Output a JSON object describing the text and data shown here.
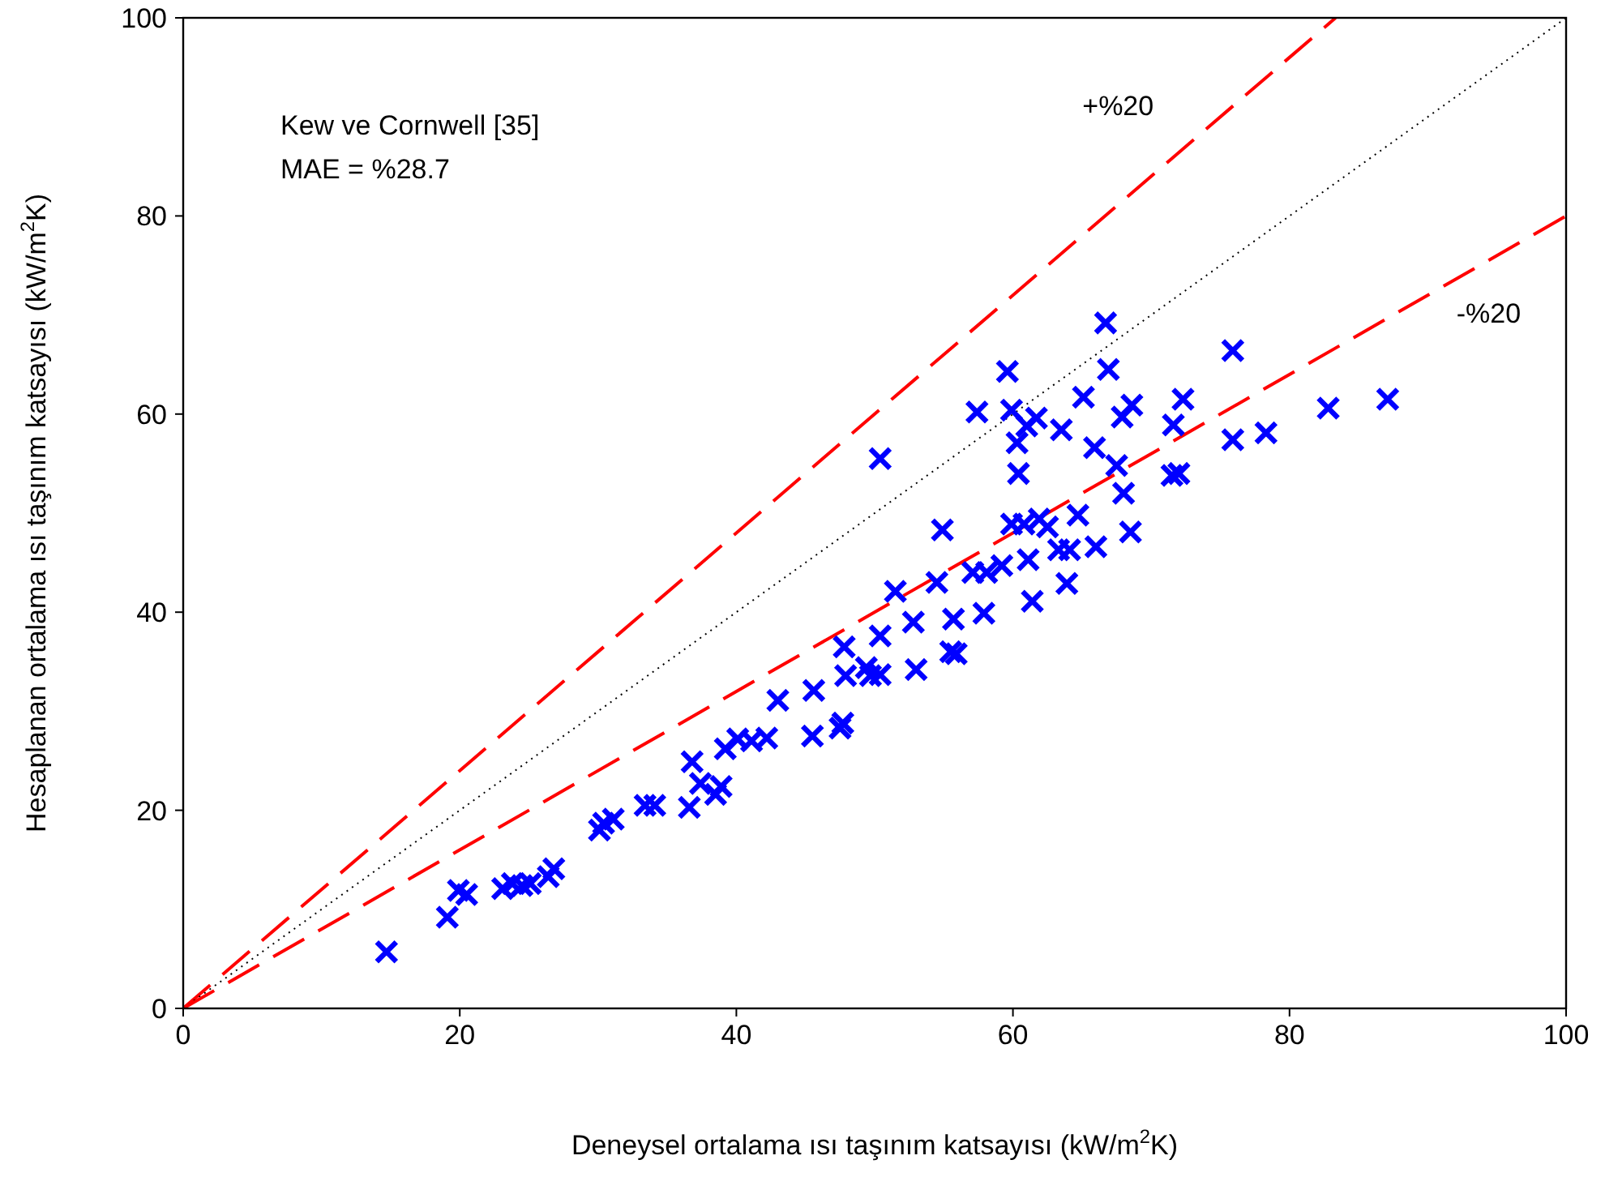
{
  "chart_data": {
    "type": "scatter",
    "xlabel": "Deneysel ortalama ısı taşınım katsayısı (kW/m$^{2}$K)",
    "ylabel": "Hesaplanan ortalama ısı taşınım katsayısı (kW/m$^{2}$K)",
    "xlim": [
      0,
      100
    ],
    "ylim": [
      0,
      100
    ],
    "xticks": [
      0,
      20,
      40,
      60,
      80,
      100
    ],
    "yticks": [
      0,
      20,
      40,
      60,
      80,
      100
    ],
    "grid": false,
    "annotations": [
      "Kew ve Cornwell [35]",
      "MAE = %28.7",
      "+%20",
      "-%20"
    ],
    "series": [
      {
        "type": "line",
        "color": "#ff0000",
        "line_style": "dashed",
        "marker": "none",
        "x": [
          0,
          83.33
        ],
        "values": [
          0,
          100
        ]
      },
      {
        "type": "line",
        "color": "#000000",
        "line_style": "dotted",
        "marker": "none",
        "x": [
          0,
          100
        ],
        "values": [
          0,
          100
        ]
      },
      {
        "type": "line",
        "color": "#ff0000",
        "line_style": "dashed",
        "marker": "none",
        "x": [
          0,
          100
        ],
        "values": [
          0,
          80
        ]
      },
      {
        "color": "#0000ff",
        "marker": "cross",
        "x": [
          14.7,
          19.1,
          19.9,
          20.5,
          23.1,
          23.8,
          24.5,
          25.1,
          26.4,
          26.8,
          30.1,
          30.4,
          31.1,
          33.4,
          34.1,
          36.6,
          36.8,
          37.4,
          38.5,
          38.9,
          39.2,
          40.1,
          41.1,
          42.2,
          43.0,
          45.6,
          45.5,
          47.5,
          47.7,
          47.9,
          47.8,
          49.4,
          49.7,
          50.4,
          50.4,
          50.4,
          51.5,
          53.0,
          52.8,
          54.5,
          54.9,
          55.5,
          55.9,
          55.7,
          57.1,
          57.4,
          57.9,
          58.1,
          59.2,
          59.6,
          59.9,
          59.9,
          60.3,
          60.4,
          60.8,
          61.0,
          61.1,
          61.4,
          61.7,
          61.9,
          62.5,
          63.5,
          63.3,
          63.9,
          64.1,
          64.7,
          65.1,
          65.9,
          66.0,
          66.7,
          66.9,
          67.5,
          67.9,
          68.0,
          68.6,
          68.5,
          71.6,
          72.3,
          72.0,
          71.5,
          75.9,
          75.9,
          78.3,
          82.8,
          87.1
        ],
        "values": [
          5.7,
          9.2,
          11.9,
          11.5,
          12.1,
          12.6,
          12.4,
          12.6,
          13.3,
          14.1,
          18.0,
          18.7,
          19.1,
          20.5,
          20.5,
          20.3,
          24.9,
          22.7,
          21.6,
          22.4,
          26.2,
          27.2,
          27.0,
          27.3,
          31.1,
          32.1,
          27.5,
          28.3,
          28.8,
          33.6,
          36.5,
          34.4,
          33.6,
          33.7,
          37.6,
          55.5,
          42.1,
          34.2,
          39.0,
          43.0,
          48.3,
          36.0,
          35.8,
          39.3,
          44.0,
          60.2,
          39.9,
          44.0,
          44.7,
          64.3,
          48.9,
          60.4,
          57.1,
          54.0,
          48.9,
          58.8,
          45.3,
          41.1,
          59.6,
          49.4,
          48.6,
          58.4,
          46.3,
          42.9,
          46.3,
          49.8,
          61.7,
          56.6,
          46.6,
          69.2,
          64.5,
          54.8,
          59.7,
          52.0,
          60.9,
          48.1,
          58.9,
          61.5,
          54.0,
          53.8,
          57.4,
          66.4,
          58.1,
          60.6,
          61.5
        ]
      }
    ]
  }
}
